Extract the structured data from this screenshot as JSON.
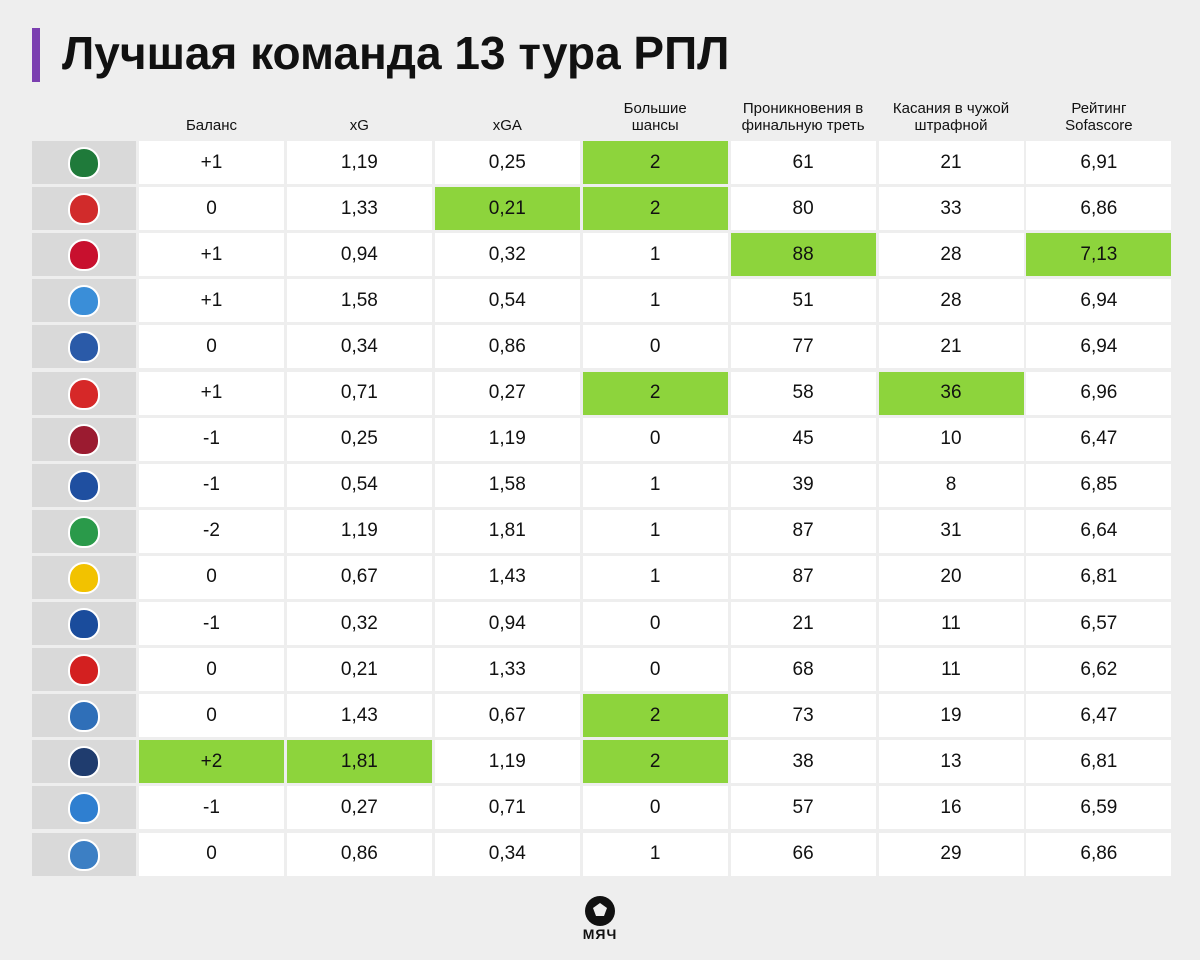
{
  "header": {
    "title": "Лучшая команда 13 тура РПЛ"
  },
  "table": {
    "columns": [
      "Баланс",
      "xG",
      "xGA",
      "Большие шансы",
      "Проникновения в финальную треть",
      "Касания в чужой штрафной",
      "Рейтинг Sofascore"
    ],
    "rows": [
      [
        "+1",
        "1,19",
        "0,25",
        "2",
        "61",
        "21",
        "6,91"
      ],
      [
        "0",
        "1,33",
        "0,21",
        "2",
        "80",
        "33",
        "6,86"
      ],
      [
        "+1",
        "0,94",
        "0,32",
        "1",
        "88",
        "28",
        "7,13"
      ],
      [
        "+1",
        "1,58",
        "0,54",
        "1",
        "51",
        "28",
        "6,94"
      ],
      [
        "0",
        "0,34",
        "0,86",
        "0",
        "77",
        "21",
        "6,94"
      ],
      [
        "+1",
        "0,71",
        "0,27",
        "2",
        "58",
        "36",
        "6,96"
      ],
      [
        "-1",
        "0,25",
        "1,19",
        "0",
        "45",
        "10",
        "6,47"
      ],
      [
        "-1",
        "0,54",
        "1,58",
        "1",
        "39",
        "8",
        "6,85"
      ],
      [
        "-2",
        "1,19",
        "1,81",
        "1",
        "87",
        "31",
        "6,64"
      ],
      [
        "0",
        "0,67",
        "1,43",
        "1",
        "87",
        "20",
        "6,81"
      ],
      [
        "-1",
        "0,32",
        "0,94",
        "0",
        "21",
        "11",
        "6,57"
      ],
      [
        "0",
        "0,21",
        "1,33",
        "0",
        "68",
        "11",
        "6,62"
      ],
      [
        "0",
        "1,43",
        "0,67",
        "2",
        "73",
        "19",
        "6,47"
      ],
      [
        "+2",
        "1,81",
        "1,19",
        "2",
        "38",
        "13",
        "6,81"
      ],
      [
        "-1",
        "0,27",
        "0,71",
        "0",
        "57",
        "16",
        "6,59"
      ],
      [
        "0",
        "0,86",
        "0,34",
        "1",
        "66",
        "29",
        "6,86"
      ]
    ],
    "highlighted": [
      [
        3
      ],
      [
        2,
        3
      ],
      [
        4,
        6
      ],
      [],
      [],
      [
        3,
        5
      ],
      [],
      [],
      [],
      [],
      [],
      [],
      [
        3
      ],
      [
        0,
        1,
        3
      ],
      [],
      []
    ],
    "highlight_color": "#8dd43c"
  },
  "footer": {
    "logo": "МЯЧ"
  }
}
